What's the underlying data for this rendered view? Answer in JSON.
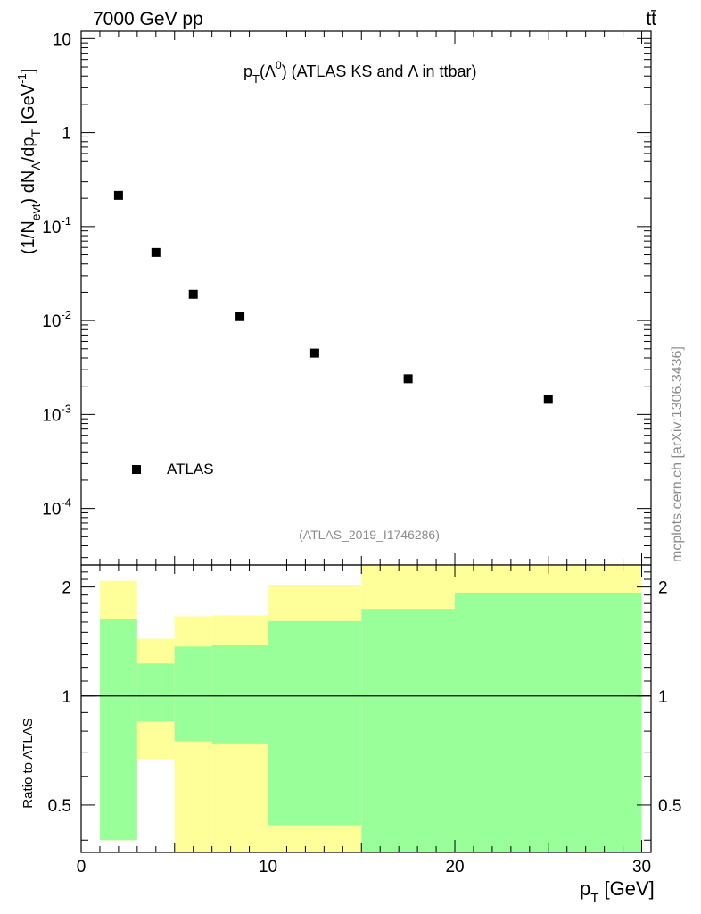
{
  "header": {
    "left": "7000 GeV pp",
    "right": "tt̄",
    "watermark": "mcplots.cern.ch [arXiv:1306.3436]"
  },
  "plot": {
    "title": {
      "base": "p",
      "sub": "T",
      "paren": "(Λ",
      "sup": "0",
      "rest": ") (ATLAS KS and Λ in ttbar)"
    },
    "analysis_id": "(ATLAS_2019_I1746286)",
    "ylabel": "(1/N_evt) dN_Λ/dp_T [GeV^-1]",
    "ylabel_parts": {
      "a": "(1/N",
      "a_sub": "evt",
      "b": ") dN",
      "b_sub": "Λ",
      "c": "/dp",
      "c_sub": "T",
      "d": " [GeV",
      "d_sup": "-1",
      "e": "]"
    },
    "yticks": [
      {
        "base": "10",
        "exp": "-4"
      },
      {
        "base": "10",
        "exp": "-3"
      },
      {
        "base": "10",
        "exp": "-2"
      },
      {
        "base": "10",
        "exp": "-1"
      },
      {
        "base": "1",
        "exp": ""
      },
      {
        "base": "10",
        "exp": ""
      }
    ],
    "legend": "ATLAS"
  },
  "ratio": {
    "ylabel": "Ratio to ATLAS",
    "yticks": [
      "0.5",
      "1",
      "2"
    ],
    "xlabel": "p_T [GeV]",
    "xlabel_parts": {
      "a": "p",
      "sub": "T",
      "b": " [GeV]"
    },
    "xticks": [
      "0",
      "10",
      "20",
      "30"
    ]
  },
  "colors": {
    "outer_band": "#ffff99",
    "inner_band": "#99ff99",
    "marker": "#000000"
  },
  "chart_data": {
    "type": "scatter",
    "title": "p_T(Λ^0) (ATLAS KS and Λ in ttbar)",
    "xlabel": "p_T [GeV]",
    "ylabel": "(1/N_evt) dN_Λ/dp_T [GeV^-1]",
    "xlim": [
      0,
      30.5
    ],
    "ylim": [
      2.5e-05,
      12
    ],
    "yscale": "log",
    "legend": "bottom-left",
    "series": [
      {
        "name": "ATLAS",
        "x": [
          2,
          4,
          6,
          8.5,
          12.5,
          17.5,
          25
        ],
        "y": [
          0.215,
          0.053,
          0.019,
          0.011,
          0.0045,
          0.0024,
          0.00145
        ]
      }
    ],
    "ratio": {
      "ylabel": "Ratio to ATLAS",
      "ylim": [
        0.37,
        2.3
      ],
      "yscale": "log",
      "reference_line": 1,
      "bins": [
        {
          "lo": 1,
          "hi": 3,
          "outer": [
            0.4,
            2.08
          ],
          "inner": [
            0.4,
            1.63
          ]
        },
        {
          "lo": 3,
          "hi": 5,
          "outer": [
            0.67,
            1.44
          ],
          "inner": [
            0.85,
            1.23
          ]
        },
        {
          "lo": 5,
          "hi": 7,
          "outer": [
            0.35,
            1.66
          ],
          "inner": [
            0.75,
            1.37
          ]
        },
        {
          "lo": 7,
          "hi": 10,
          "outer": [
            0.35,
            1.67
          ],
          "inner": [
            0.74,
            1.38
          ]
        },
        {
          "lo": 10,
          "hi": 15,
          "outer": [
            0.35,
            2.03
          ],
          "inner": [
            0.44,
            1.61
          ]
        },
        {
          "lo": 15,
          "hi": 20,
          "outer": [
            0.35,
            2.3
          ],
          "inner": [
            0.35,
            1.74
          ]
        },
        {
          "lo": 20,
          "hi": 30,
          "outer": [
            0.35,
            2.3
          ],
          "inner": [
            0.35,
            1.93
          ]
        }
      ]
    }
  }
}
